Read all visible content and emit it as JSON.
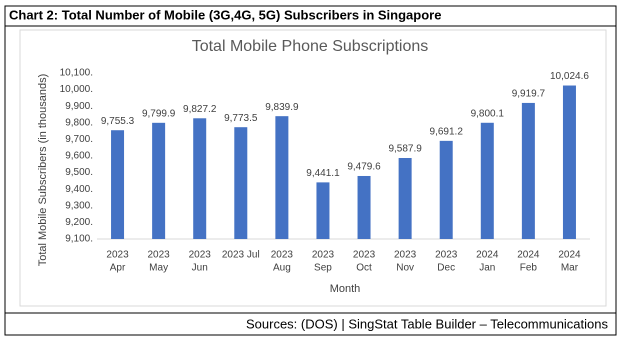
{
  "header": {
    "title": "Chart 2: Total Number of Mobile (3G,4G, 5G) Subscribers in Singapore"
  },
  "chart_data": {
    "type": "bar",
    "title": "Total Mobile Phone Subscriptions",
    "x_label": "Month",
    "y_label": "Total Mobile Subscribers (in thousands)",
    "categories": [
      [
        "2023",
        "Apr"
      ],
      [
        "2023",
        "May"
      ],
      [
        "2023",
        "Jun"
      ],
      [
        "2023 Jul"
      ],
      [
        "2023",
        "Aug"
      ],
      [
        "2023",
        "Sep"
      ],
      [
        "2023",
        "Oct"
      ],
      [
        "2023",
        "Nov"
      ],
      [
        "2023",
        "Dec"
      ],
      [
        "2024",
        "Jan"
      ],
      [
        "2024",
        "Feb"
      ],
      [
        "2024",
        "Mar"
      ]
    ],
    "values": [
      9755.3,
      9799.9,
      9827.2,
      9773.5,
      9839.9,
      9441.1,
      9479.6,
      9587.9,
      9691.2,
      9800.1,
      9919.7,
      10024.6
    ],
    "value_labels": [
      "9,755.3",
      "9,799.9",
      "9,827.2",
      "9,773.5",
      "9,839.9",
      "9,441.1",
      "9,479.6",
      "9,587.9",
      "9,691.2",
      "9,800.1",
      "9,919.7",
      "10,024.6"
    ],
    "color": "#4472c4",
    "ylim": [
      9100,
      10100
    ],
    "yticks": [
      {
        "value": 9100,
        "label": "9,100."
      },
      {
        "value": 9200,
        "label": "9,200."
      },
      {
        "value": 9300,
        "label": "9,300."
      },
      {
        "value": 9400,
        "label": "9,400."
      },
      {
        "value": 9500,
        "label": "9,500."
      },
      {
        "value": 9600,
        "label": "9,600."
      },
      {
        "value": 9700,
        "label": "9,700."
      },
      {
        "value": 9800,
        "label": "9,800."
      },
      {
        "value": 9900,
        "label": "9,900."
      },
      {
        "value": 10000,
        "label": "10,000."
      },
      {
        "value": 10100,
        "label": "10,100."
      }
    ],
    "grid": false
  },
  "footer": {
    "source": "Sources: (DOS) | SingStat Table Builder – Telecommunications"
  }
}
